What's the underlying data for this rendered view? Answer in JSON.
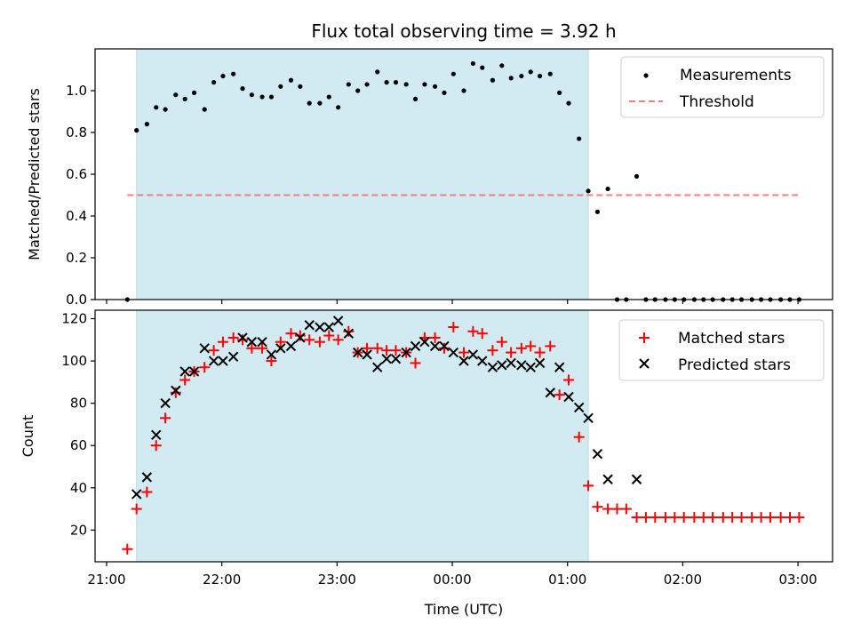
{
  "chart_data": {
    "title": "Flux total observing time = 3.92 h",
    "xlabel": "Time (UTC)",
    "x_ticks": [
      "21:00",
      "22:00",
      "23:00",
      "00:00",
      "01:00",
      "02:00",
      "03:00"
    ],
    "x_tick_hours": [
      0,
      1,
      2,
      3,
      4,
      5,
      6
    ],
    "x_range_hours": [
      -0.1,
      6.3
    ],
    "observing_window_hours": [
      0.26,
      4.18
    ],
    "window_color": "#d2eaf1",
    "panels": [
      {
        "type": "scatter",
        "ylabel": "Matched/Predicted stars",
        "ylim": [
          0,
          1.2
        ],
        "yticks": [
          "0.0",
          "0.2",
          "0.4",
          "0.6",
          "0.8",
          "1.0"
        ],
        "ytick_values": [
          0,
          0.2,
          0.4,
          0.6,
          0.8,
          1.0
        ],
        "legend": [
          {
            "label": "Measurements",
            "marker": "dot",
            "color": "#000000"
          },
          {
            "label": "Threshold",
            "marker": "dashed-line",
            "color": "#f08080"
          }
        ],
        "threshold": {
          "y": 0.5,
          "x_range_hours": [
            0.18,
            6.0
          ],
          "color": "#f08080"
        },
        "series": [
          {
            "name": "Measurements",
            "marker": "dot",
            "color": "#000000",
            "x": [
              0.18,
              0.26,
              0.35,
              0.43,
              0.51,
              0.6,
              0.68,
              0.76,
              0.85,
              0.93,
              1.01,
              1.1,
              1.18,
              1.26,
              1.35,
              1.43,
              1.51,
              1.6,
              1.68,
              1.76,
              1.85,
              1.93,
              2.01,
              2.1,
              2.18,
              2.26,
              2.35,
              2.43,
              2.51,
              2.6,
              2.68,
              2.76,
              2.85,
              2.93,
              3.01,
              3.1,
              3.18,
              3.26,
              3.35,
              3.43,
              3.51,
              3.6,
              3.68,
              3.76,
              3.85,
              3.93,
              4.01,
              4.1,
              4.18,
              4.26,
              4.35,
              4.43,
              4.51,
              4.6,
              4.68,
              4.76,
              4.85,
              4.93,
              5.01,
              5.1,
              5.18,
              5.26,
              5.35,
              5.43,
              5.51,
              5.6,
              5.68,
              5.76,
              5.85,
              5.93,
              6.01
            ],
            "y": [
              0.0,
              0.81,
              0.84,
              0.92,
              0.91,
              0.98,
              0.96,
              0.99,
              0.91,
              1.04,
              1.07,
              1.08,
              1.01,
              0.98,
              0.97,
              0.97,
              1.02,
              1.05,
              1.02,
              0.94,
              0.94,
              0.97,
              0.92,
              1.03,
              1.0,
              1.03,
              1.09,
              1.04,
              1.04,
              1.03,
              0.96,
              1.03,
              1.02,
              0.99,
              1.08,
              1.0,
              1.13,
              1.11,
              1.05,
              1.12,
              1.06,
              1.07,
              1.09,
              1.07,
              1.08,
              0.99,
              0.94,
              0.77,
              0.52,
              0.42,
              0.53,
              0.0,
              0.0,
              0.59,
              0.0,
              0.0,
              0.0,
              0.0,
              0.0,
              0.0,
              0.0,
              0.0,
              0.0,
              0.0,
              0.0,
              0.0,
              0.0,
              0.0,
              0.0,
              0.0,
              0.0
            ]
          }
        ]
      },
      {
        "type": "scatter",
        "ylabel": "Count",
        "ylim": [
          5,
          124
        ],
        "yticks": [
          "20",
          "40",
          "60",
          "80",
          "100",
          "120"
        ],
        "ytick_values": [
          20,
          40,
          60,
          80,
          100,
          120
        ],
        "legend": [
          {
            "label": "Matched stars",
            "marker": "plus",
            "color": "#ff0000"
          },
          {
            "label": "Predicted stars",
            "marker": "x",
            "color": "#000000"
          }
        ],
        "series": [
          {
            "name": "Matched stars",
            "marker": "plus",
            "color": "#ff0000",
            "x": [
              0.18,
              0.26,
              0.35,
              0.43,
              0.51,
              0.6,
              0.68,
              0.76,
              0.85,
              0.93,
              1.01,
              1.1,
              1.18,
              1.26,
              1.35,
              1.43,
              1.51,
              1.6,
              1.68,
              1.76,
              1.85,
              1.93,
              2.01,
              2.1,
              2.18,
              2.26,
              2.35,
              2.43,
              2.51,
              2.6,
              2.68,
              2.76,
              2.85,
              2.93,
              3.01,
              3.1,
              3.18,
              3.26,
              3.35,
              3.43,
              3.51,
              3.6,
              3.68,
              3.76,
              3.85,
              3.93,
              4.01,
              4.1,
              4.18,
              4.26,
              4.35,
              4.43,
              4.51,
              4.6,
              4.68,
              4.76,
              4.85,
              4.93,
              5.01,
              5.1,
              5.18,
              5.26,
              5.35,
              5.43,
              5.51,
              5.6,
              5.68,
              5.76,
              5.85,
              5.93,
              6.01
            ],
            "y": [
              11,
              30,
              38,
              60,
              73,
              85,
              91,
              95,
              97,
              105,
              109,
              111,
              110,
              106,
              106,
              100,
              109,
              113,
              112,
              110,
              109,
              112,
              110,
              114,
              104,
              106,
              106,
              105,
              105,
              104,
              99,
              111,
              111,
              106,
              116,
              104,
              114,
              113,
              105,
              109,
              104,
              106,
              107,
              104,
              107,
              84,
              91,
              64,
              41,
              31,
              30,
              30,
              30,
              26,
              26,
              26,
              26,
              26,
              26,
              26,
              26,
              26,
              26,
              26,
              26,
              26,
              26,
              26,
              26,
              26,
              26
            ]
          },
          {
            "name": "Predicted stars",
            "marker": "x",
            "color": "#000000",
            "x": [
              0.26,
              0.35,
              0.43,
              0.51,
              0.6,
              0.68,
              0.76,
              0.85,
              0.93,
              1.01,
              1.1,
              1.18,
              1.26,
              1.35,
              1.43,
              1.51,
              1.6,
              1.68,
              1.76,
              1.85,
              1.93,
              2.01,
              2.1,
              2.18,
              2.26,
              2.35,
              2.43,
              2.51,
              2.6,
              2.68,
              2.76,
              2.85,
              2.93,
              3.01,
              3.1,
              3.18,
              3.26,
              3.35,
              3.43,
              3.51,
              3.6,
              3.68,
              3.76,
              3.85,
              3.93,
              4.01,
              4.1,
              4.18,
              4.26,
              4.35,
              4.6
            ],
            "y": [
              37,
              45,
              65,
              80,
              86,
              95,
              95,
              106,
              100,
              100,
              102,
              111,
              109,
              109,
              103,
              106,
              107,
              111,
              117,
              116,
              116,
              119,
              113,
              104,
              103,
              97,
              101,
              101,
              104,
              107,
              109,
              107,
              107,
              104,
              100,
              103,
              100,
              97,
              98,
              99,
              98,
              97,
              99,
              85,
              97,
              83,
              78,
              73,
              56,
              44,
              44
            ]
          }
        ]
      }
    ]
  }
}
